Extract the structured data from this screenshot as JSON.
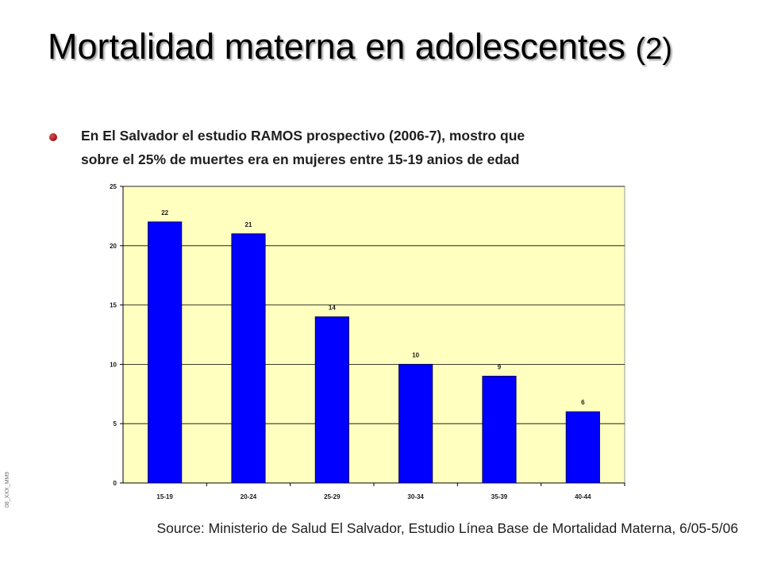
{
  "slide": {
    "title_main": "Mortalidad materna en adolescentes",
    "title_suffix": "(2)",
    "bullet_line1": "En  El Salvador el estudio RAMOS prospectivo (2006-7),  mostro que",
    "bullet_line2": "sobre el  25% de muertes era en mujeres entre 15-19 anios de edad",
    "side_code": "08_XXX_MM9",
    "source": "Source: Ministerio de Salud El Salvador, Estudio Línea Base de Mortalidad Materna, 6/05-5/06"
  },
  "colors": {
    "plot_background": "#ffffc0",
    "bar_fill": "#0000ff",
    "bar_stroke": "#00005a",
    "gridline": "#000000"
  },
  "chart_data": {
    "type": "bar",
    "title": "",
    "xlabel": "",
    "ylabel": "",
    "categories": [
      "15-19",
      "20-24",
      "25-29",
      "30-34",
      "35-39",
      "40-44"
    ],
    "values": [
      22,
      21,
      14,
      10,
      9,
      6
    ],
    "data_labels": [
      "22",
      "21",
      "14",
      "10",
      "9",
      "6"
    ],
    "ylim": [
      0,
      25
    ],
    "yticks": [
      0,
      5,
      10,
      15,
      20,
      25
    ],
    "ytick_labels": [
      "0",
      "5",
      "10",
      "15",
      "20",
      "25"
    ],
    "grid": true,
    "legend": "none"
  }
}
